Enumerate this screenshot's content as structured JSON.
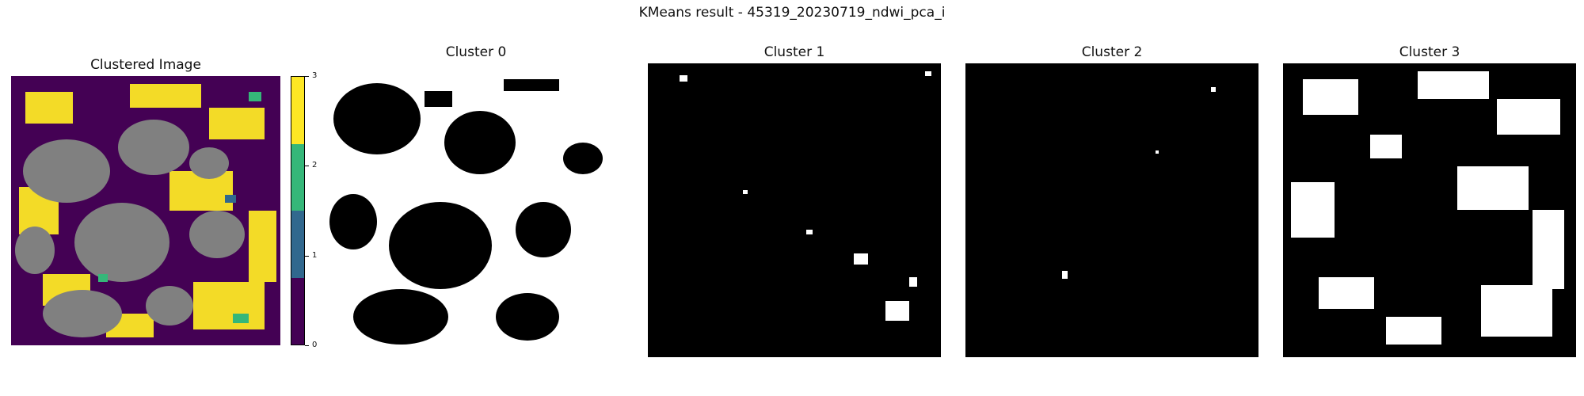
{
  "figure": {
    "suptitle": "KMeans result - 45319_20230719_ndwi_pca_i"
  },
  "panels": [
    {
      "id": "clustered",
      "title": "Clustered Image"
    },
    {
      "id": "c0",
      "title": "Cluster 0"
    },
    {
      "id": "c1",
      "title": "Cluster 1"
    },
    {
      "id": "c2",
      "title": "Cluster 2"
    },
    {
      "id": "c3",
      "title": "Cluster 3"
    }
  ],
  "colorbar": {
    "ticks": [
      "0",
      "1",
      "2",
      "3"
    ],
    "colors": [
      "#440154",
      "#31688e",
      "#35b779",
      "#fde725"
    ],
    "nodata_color": "#808080"
  },
  "masks": {
    "background_on": "#000000",
    "foreground_on": "#ffffff"
  }
}
